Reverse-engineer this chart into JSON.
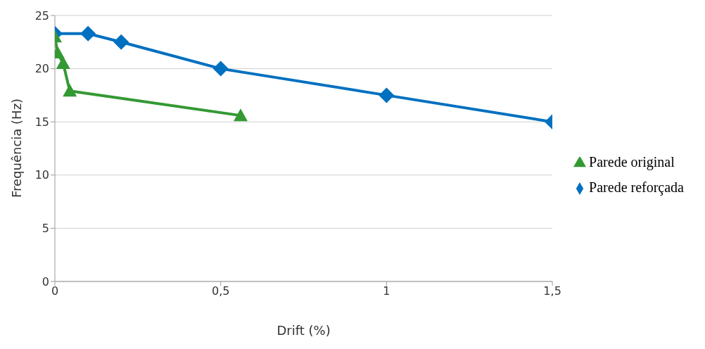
{
  "chart_data": {
    "type": "line",
    "xlabel": "Drift (%)",
    "ylabel": "Frequência (Hz)",
    "xlim": [
      0,
      1.5
    ],
    "xticks": [
      {
        "value": 0,
        "label": "0"
      },
      {
        "value": 0.5,
        "label": "0,5"
      },
      {
        "value": 1,
        "label": "1"
      },
      {
        "value": 1.5,
        "label": "1,5"
      }
    ],
    "ylim": [
      0,
      25
    ],
    "yticks": [
      0,
      5,
      10,
      15,
      20,
      25
    ],
    "grid": "y",
    "legend": "right",
    "series": [
      {
        "name": "Parede reforçada",
        "color": "#0070c0",
        "marker": "diamond",
        "x": [
          0,
          0.1,
          0.2,
          0.5,
          1,
          1.5
        ],
        "values": [
          23.3,
          23.3,
          22.5,
          20,
          17.5,
          15
        ]
      },
      {
        "name": "Parede original",
        "color": "#339933",
        "marker": "triangle",
        "x": [
          0,
          0.008,
          0.025,
          0.045,
          0.56
        ],
        "values": [
          23.0,
          21.5,
          20.5,
          17.9,
          15.6
        ]
      }
    ]
  }
}
